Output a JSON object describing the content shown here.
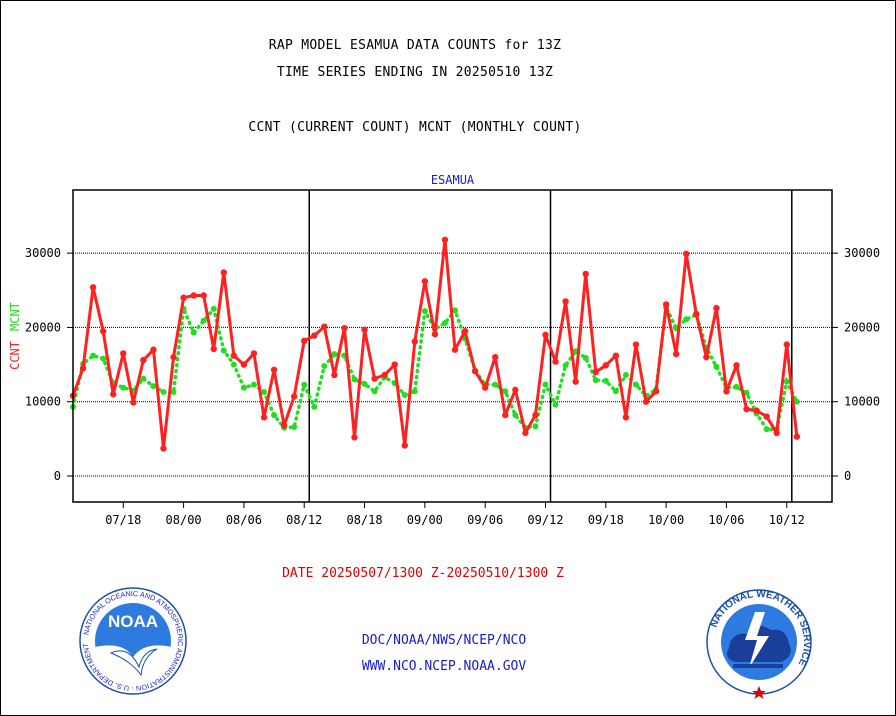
{
  "header": {
    "line1": "RAP MODEL ESAMUA DATA COUNTS for 13Z",
    "line2": "TIME SERIES ENDING IN 20250510 13Z",
    "line3": "CCNT (CURRENT COUNT) MCNT (MONTHLY COUNT)"
  },
  "footer": {
    "date_range": "DATE 20250507/1300 Z-20250510/1300 Z",
    "org_path": "DOC/NOAA/NWS/NCEP/NCO",
    "website": "WWW.NCO.NCEP.NOAA.GOV",
    "noaa_logo_text": "NOAA",
    "noaa_seal_text": "NATIONAL OCEANIC AND ATMOSPHERIC ADMINISTRATION · U.S. DEPARTMENT OF COMMERCE",
    "nws_seal_text": "NATIONAL WEATHER SERVICE"
  },
  "chart_data": {
    "type": "line",
    "title": "ESAMUA",
    "ylabel_ccnt": "CCNT",
    "ylabel_mcnt": "MCNT",
    "ylim": [
      -3500,
      38500
    ],
    "yticks": [
      0,
      10000,
      20000,
      30000
    ],
    "ytick_labels": [
      "0",
      "10000",
      "20000",
      "30000"
    ],
    "xlim": [
      0,
      75.5
    ],
    "xticks": [
      {
        "x": 5,
        "label": "07/18"
      },
      {
        "x": 11,
        "label": "08/00"
      },
      {
        "x": 17,
        "label": "08/06"
      },
      {
        "x": 23,
        "label": "08/12"
      },
      {
        "x": 29,
        "label": "08/18"
      },
      {
        "x": 35,
        "label": "09/00"
      },
      {
        "x": 41,
        "label": "09/06"
      },
      {
        "x": 47,
        "label": "09/12"
      },
      {
        "x": 53,
        "label": "09/18"
      },
      {
        "x": 59,
        "label": "10/00"
      },
      {
        "x": 65,
        "label": "10/06"
      },
      {
        "x": 71,
        "label": "10/12"
      }
    ],
    "day_boundaries": [
      23.5,
      47.5,
      71.5
    ],
    "gridlines": "horizontal",
    "series": [
      {
        "name": "CCNT",
        "color": "#ff2020",
        "values": [
          10800,
          14500,
          25400,
          19500,
          11000,
          16500,
          9900,
          15600,
          17000,
          3700,
          16000,
          24000,
          24300,
          24300,
          17100,
          27400,
          16200,
          15000,
          16500,
          7900,
          14300,
          6800,
          10700,
          18200,
          18900,
          20100,
          13600,
          19900,
          5200,
          19700,
          13100,
          13600,
          15000,
          4100,
          18100,
          26200,
          19100,
          31800,
          17000,
          19500,
          14100,
          11900,
          16000,
          8200,
          11600,
          5800,
          8200,
          19000,
          15400,
          23500,
          12700,
          27200,
          14000,
          14900,
          16200,
          7900,
          17700,
          10000,
          11400,
          23100,
          16400,
          29900,
          21800,
          16000,
          22600,
          11400,
          14900,
          9000,
          8800,
          8000,
          5800,
          17700,
          5300
        ]
      },
      {
        "name": "MCNT",
        "color": "#22dd22",
        "values": [
          9300,
          15100,
          16200,
          15800,
          12500,
          11900,
          11500,
          13100,
          12100,
          11300,
          11300,
          22500,
          19300,
          20900,
          22500,
          16900,
          15000,
          11900,
          12300,
          11300,
          8200,
          6500,
          6600,
          12300,
          9300,
          14800,
          16400,
          16200,
          13000,
          12400,
          11400,
          13300,
          12500,
          10900,
          11400,
          22200,
          19800,
          20600,
          22300,
          18500,
          14200,
          12300,
          12300,
          11400,
          8200,
          6500,
          6700,
          12300,
          9600,
          14900,
          16800,
          15900,
          12900,
          12800,
          11400,
          13600,
          12300,
          10800,
          11600,
          22700,
          19900,
          21100,
          21700,
          17300,
          14700,
          11900,
          12000,
          11200,
          8400,
          6300,
          6300,
          12700,
          10000
        ]
      }
    ]
  },
  "colors": {
    "ccnt": "#ff2020",
    "mcnt": "#22dd22",
    "title_blue": "#1a1ad0",
    "date_red": "#e00000"
  }
}
